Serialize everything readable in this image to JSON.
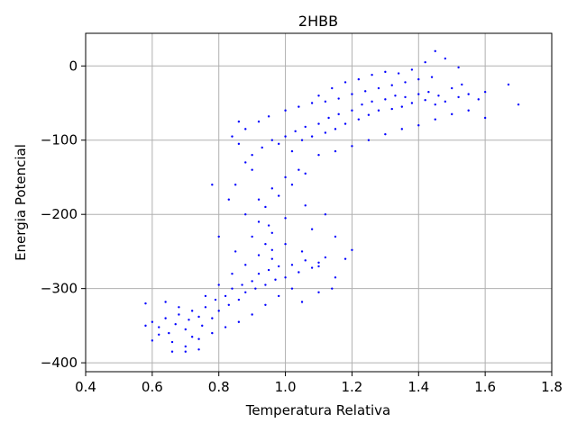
{
  "chart_data": {
    "type": "scatter",
    "title": "2HBB",
    "xlabel": "Temperatura Relativa",
    "ylabel": "Energia Potencial",
    "xlim": [
      0.4,
      1.8
    ],
    "ylim": [
      -412,
      44
    ],
    "xticks": [
      0.4,
      0.6,
      0.8,
      1.0,
      1.2,
      1.4,
      1.6,
      1.8
    ],
    "xtick_labels": [
      "0.4",
      "0.6",
      "0.8",
      "1.0",
      "1.2",
      "1.4",
      "1.6",
      "1.8"
    ],
    "yticks": [
      0,
      -100,
      -200,
      -300,
      -400
    ],
    "ytick_labels": [
      "0",
      "−100",
      "−200",
      "−300",
      "−400"
    ],
    "grid": true,
    "marker_color": "#0000ff",
    "series": [
      {
        "values": [
          [
            0.58,
            -350
          ],
          [
            0.6,
            -345
          ],
          [
            0.62,
            -352
          ],
          [
            0.64,
            -340
          ],
          [
            0.65,
            -360
          ],
          [
            0.67,
            -348
          ],
          [
            0.68,
            -335
          ],
          [
            0.7,
            -355
          ],
          [
            0.71,
            -342
          ],
          [
            0.72,
            -365
          ],
          [
            0.74,
            -338
          ],
          [
            0.75,
            -350
          ],
          [
            0.76,
            -325
          ],
          [
            0.78,
            -340
          ],
          [
            0.79,
            -315
          ],
          [
            0.8,
            -330
          ],
          [
            0.82,
            -310
          ],
          [
            0.83,
            -322
          ],
          [
            0.84,
            -300
          ],
          [
            0.86,
            -315
          ],
          [
            0.87,
            -295
          ],
          [
            0.88,
            -305
          ],
          [
            0.9,
            -290
          ],
          [
            0.91,
            -300
          ],
          [
            0.92,
            -280
          ],
          [
            0.94,
            -295
          ],
          [
            0.95,
            -275
          ],
          [
            0.97,
            -288
          ],
          [
            0.98,
            -270
          ],
          [
            1.0,
            -285
          ],
          [
            1.02,
            -268
          ],
          [
            1.04,
            -278
          ],
          [
            1.06,
            -262
          ],
          [
            1.08,
            -272
          ],
          [
            1.1,
            -265
          ],
          [
            1.12,
            -258
          ],
          [
            0.66,
            -372
          ],
          [
            0.7,
            -378
          ],
          [
            0.74,
            -368
          ],
          [
            0.78,
            -360
          ],
          [
            0.82,
            -352
          ],
          [
            0.86,
            -345
          ],
          [
            0.9,
            -335
          ],
          [
            0.94,
            -322
          ],
          [
            0.98,
            -310
          ],
          [
            1.02,
            -300
          ],
          [
            0.72,
            -330
          ],
          [
            0.76,
            -310
          ],
          [
            0.8,
            -295
          ],
          [
            0.84,
            -280
          ],
          [
            0.88,
            -268
          ],
          [
            0.92,
            -255
          ],
          [
            0.96,
            -248
          ],
          [
            1.0,
            -240
          ],
          [
            1.05,
            -250
          ],
          [
            1.1,
            -270
          ],
          [
            1.15,
            -285
          ],
          [
            0.85,
            -250
          ],
          [
            0.9,
            -230
          ],
          [
            0.95,
            -215
          ],
          [
            1.0,
            -205
          ],
          [
            0.88,
            -200
          ],
          [
            0.92,
            -180
          ],
          [
            0.96,
            -165
          ],
          [
            1.0,
            -150
          ],
          [
            1.04,
            -140
          ],
          [
            0.94,
            -190
          ],
          [
            0.98,
            -175
          ],
          [
            1.02,
            -160
          ],
          [
            1.06,
            -145
          ],
          [
            0.9,
            -120
          ],
          [
            0.93,
            -110
          ],
          [
            0.96,
            -100
          ],
          [
            1.0,
            -95
          ],
          [
            1.03,
            -88
          ],
          [
            1.06,
            -82
          ],
          [
            1.1,
            -78
          ],
          [
            1.13,
            -70
          ],
          [
            1.16,
            -65
          ],
          [
            1.2,
            -60
          ],
          [
            1.23,
            -52
          ],
          [
            1.26,
            -48
          ],
          [
            1.3,
            -45
          ],
          [
            1.33,
            -40
          ],
          [
            1.36,
            -42
          ],
          [
            1.4,
            -38
          ],
          [
            1.43,
            -35
          ],
          [
            1.46,
            -40
          ],
          [
            1.5,
            -30
          ],
          [
            1.53,
            -25
          ],
          [
            0.88,
            -85
          ],
          [
            0.92,
            -75
          ],
          [
            0.95,
            -68
          ],
          [
            0.98,
            -105
          ],
          [
            1.02,
            -115
          ],
          [
            1.05,
            -100
          ],
          [
            1.08,
            -95
          ],
          [
            1.12,
            -90
          ],
          [
            1.15,
            -85
          ],
          [
            1.18,
            -78
          ],
          [
            1.22,
            -72
          ],
          [
            1.25,
            -66
          ],
          [
            1.28,
            -60
          ],
          [
            1.32,
            -58
          ],
          [
            1.35,
            -55
          ],
          [
            1.38,
            -50
          ],
          [
            1.42,
            -46
          ],
          [
            1.45,
            -52
          ],
          [
            1.48,
            -48
          ],
          [
            1.52,
            -42
          ],
          [
            1.55,
            -38
          ],
          [
            1.58,
            -45
          ],
          [
            1.1,
            -40
          ],
          [
            1.14,
            -30
          ],
          [
            1.18,
            -22
          ],
          [
            1.22,
            -18
          ],
          [
            1.26,
            -12
          ],
          [
            1.3,
            -8
          ],
          [
            1.34,
            -10
          ],
          [
            1.38,
            -5
          ],
          [
            1.42,
            5
          ],
          [
            1.45,
            20
          ],
          [
            1.48,
            10
          ],
          [
            1.52,
            -2
          ],
          [
            1.0,
            -60
          ],
          [
            1.04,
            -55
          ],
          [
            1.08,
            -50
          ],
          [
            1.12,
            -48
          ],
          [
            1.16,
            -44
          ],
          [
            1.2,
            -38
          ],
          [
            1.24,
            -34
          ],
          [
            1.28,
            -30
          ],
          [
            1.32,
            -26
          ],
          [
            1.36,
            -22
          ],
          [
            1.4,
            -18
          ],
          [
            1.44,
            -15
          ],
          [
            1.1,
            -120
          ],
          [
            1.15,
            -115
          ],
          [
            1.2,
            -108
          ],
          [
            1.25,
            -100
          ],
          [
            1.3,
            -92
          ],
          [
            1.35,
            -85
          ],
          [
            1.4,
            -80
          ],
          [
            1.45,
            -72
          ],
          [
            1.5,
            -65
          ],
          [
            1.55,
            -60
          ],
          [
            1.6,
            -70
          ],
          [
            1.67,
            -25
          ],
          [
            1.7,
            -52
          ],
          [
            1.6,
            -35
          ],
          [
            0.84,
            -95
          ],
          [
            0.86,
            -105
          ],
          [
            0.88,
            -130
          ],
          [
            0.9,
            -140
          ],
          [
            0.86,
            -75
          ],
          [
            0.92,
            -210
          ],
          [
            0.94,
            -240
          ],
          [
            0.96,
            -260
          ],
          [
            1.08,
            -220
          ],
          [
            1.12,
            -200
          ],
          [
            1.15,
            -230
          ],
          [
            1.2,
            -248
          ],
          [
            0.83,
            -180
          ],
          [
            0.85,
            -160
          ],
          [
            0.78,
            -160
          ],
          [
            0.8,
            -230
          ],
          [
            0.96,
            -225
          ],
          [
            1.06,
            -188
          ],
          [
            0.7,
            -385
          ],
          [
            0.74,
            -382
          ],
          [
            0.66,
            -385
          ],
          [
            0.62,
            -362
          ],
          [
            0.6,
            -370
          ],
          [
            0.58,
            -320
          ],
          [
            0.64,
            -318
          ],
          [
            0.68,
            -325
          ],
          [
            1.18,
            -260
          ],
          [
            1.14,
            -300
          ],
          [
            1.1,
            -305
          ],
          [
            1.05,
            -318
          ]
        ]
      }
    ]
  }
}
